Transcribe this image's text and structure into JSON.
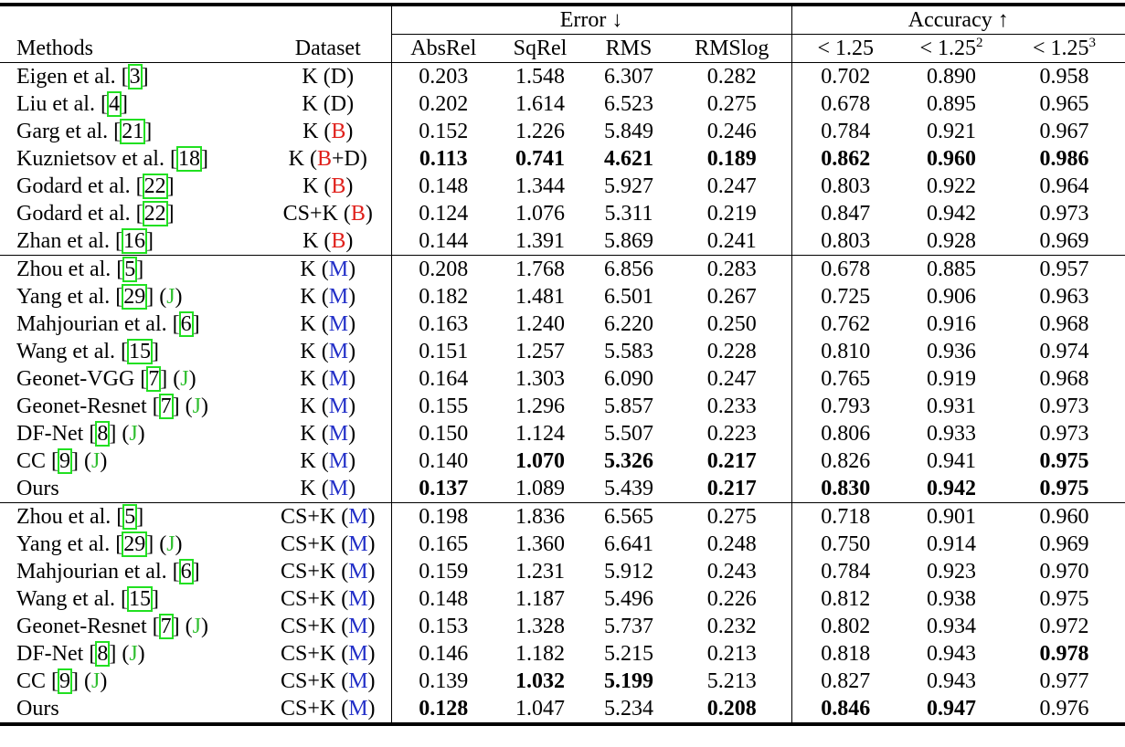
{
  "header": {
    "groups": [
      "Error ↓",
      "Accuracy ↑"
    ],
    "columns": [
      [
        "Methods"
      ],
      [
        "Dataset"
      ],
      [
        "AbsRel"
      ],
      [
        "SqRel"
      ],
      [
        "RMS"
      ],
      [
        "RMSlog"
      ],
      [
        "< 1.25"
      ],
      [
        "< 1.25",
        {
          "t": "2",
          "sup": true
        }
      ],
      [
        "< 1.25",
        {
          "t": "3",
          "sup": true
        }
      ]
    ]
  },
  "sections": [
    [
      {
        "method": [
          "Eigen et al. [",
          {
            "t": "3",
            "box": "#21e021"
          },
          "]"
        ],
        "dataset": [
          "K (D)"
        ],
        "values": [
          "0.203",
          "1.548",
          "6.307",
          "0.282",
          "0.702",
          "0.890",
          "0.958"
        ]
      },
      {
        "method": [
          "Liu et al. [",
          {
            "t": "4",
            "box": "#21e021"
          },
          "]"
        ],
        "dataset": [
          "K (D)"
        ],
        "values": [
          "0.202",
          "1.614",
          "6.523",
          "0.275",
          "0.678",
          "0.895",
          "0.965"
        ]
      },
      {
        "method": [
          "Garg et al. [",
          {
            "t": "21",
            "box": "#21e021"
          },
          "]"
        ],
        "dataset": [
          "K (",
          {
            "t": "B",
            "color": "#e0201b"
          },
          ")"
        ],
        "values": [
          "0.152",
          "1.226",
          "5.849",
          "0.246",
          "0.784",
          "0.921",
          "0.967"
        ]
      },
      {
        "method": [
          "Kuznietsov et al. [",
          {
            "t": "18",
            "box": "#21e021"
          },
          "]"
        ],
        "dataset": [
          "K (",
          {
            "t": "B",
            "color": "#e0201b"
          },
          "+D)"
        ],
        "values": [
          {
            "text": "0.113",
            "bold": true
          },
          {
            "text": "0.741",
            "bold": true
          },
          {
            "text": "4.621",
            "bold": true
          },
          {
            "text": "0.189",
            "bold": true
          },
          {
            "text": "0.862",
            "bold": true
          },
          {
            "text": "0.960",
            "bold": true
          },
          {
            "text": "0.986",
            "bold": true
          }
        ]
      },
      {
        "method": [
          "Godard et al. [",
          {
            "t": "22",
            "box": "#21e021"
          },
          "]"
        ],
        "dataset": [
          "K (",
          {
            "t": "B",
            "color": "#e0201b"
          },
          ")"
        ],
        "values": [
          "0.148",
          "1.344",
          "5.927",
          "0.247",
          "0.803",
          "0.922",
          "0.964"
        ]
      },
      {
        "method": [
          "Godard et al. [",
          {
            "t": "22",
            "box": "#21e021"
          },
          "]"
        ],
        "dataset": [
          "CS+K (",
          {
            "t": "B",
            "color": "#e0201b"
          },
          ")"
        ],
        "values": [
          "0.124",
          "1.076",
          "5.311",
          "0.219",
          "0.847",
          "0.942",
          "0.973"
        ]
      },
      {
        "method": [
          "Zhan et al. [",
          {
            "t": "16",
            "box": "#21e021"
          },
          "]"
        ],
        "dataset": [
          "K (",
          {
            "t": "B",
            "color": "#e0201b"
          },
          ")"
        ],
        "values": [
          "0.144",
          "1.391",
          "5.869",
          "0.241",
          "0.803",
          "0.928",
          "0.969"
        ]
      }
    ],
    [
      {
        "method": [
          "Zhou et al. [",
          {
            "t": "5",
            "box": "#21e021"
          },
          "]"
        ],
        "dataset": [
          "K (",
          {
            "t": "M",
            "color": "#2330c8"
          },
          ")"
        ],
        "values": [
          "0.208",
          "1.768",
          "6.856",
          "0.283",
          "0.678",
          "0.885",
          "0.957"
        ]
      },
      {
        "method": [
          "Yang et al. [",
          {
            "t": "29",
            "box": "#21e021"
          },
          "] (",
          {
            "t": "J",
            "color": "#2fbf2f"
          },
          ")"
        ],
        "dataset": [
          "K (",
          {
            "t": "M",
            "color": "#2330c8"
          },
          ")"
        ],
        "values": [
          "0.182",
          "1.481",
          "6.501",
          "0.267",
          "0.725",
          "0.906",
          "0.963"
        ]
      },
      {
        "method": [
          "Mahjourian et al. [",
          {
            "t": "6",
            "box": "#21e021"
          },
          "]"
        ],
        "dataset": [
          "K (",
          {
            "t": "M",
            "color": "#2330c8"
          },
          ")"
        ],
        "values": [
          "0.163",
          "1.240",
          "6.220",
          "0.250",
          "0.762",
          "0.916",
          "0.968"
        ]
      },
      {
        "method": [
          "Wang et al. [",
          {
            "t": "15",
            "box": "#21e021"
          },
          "]"
        ],
        "dataset": [
          "K (",
          {
            "t": "M",
            "color": "#2330c8"
          },
          ")"
        ],
        "values": [
          "0.151",
          "1.257",
          "5.583",
          "0.228",
          "0.810",
          "0.936",
          "0.974"
        ]
      },
      {
        "method": [
          "Geonet-VGG [",
          {
            "t": "7",
            "box": "#21e021"
          },
          "] (",
          {
            "t": "J",
            "color": "#2fbf2f"
          },
          ")"
        ],
        "dataset": [
          "K (",
          {
            "t": "M",
            "color": "#2330c8"
          },
          ")"
        ],
        "values": [
          "0.164",
          "1.303",
          "6.090",
          "0.247",
          "0.765",
          "0.919",
          "0.968"
        ]
      },
      {
        "method": [
          "Geonet-Resnet [",
          {
            "t": "7",
            "box": "#21e021"
          },
          "] (",
          {
            "t": "J",
            "color": "#2fbf2f"
          },
          ")"
        ],
        "dataset": [
          "K (",
          {
            "t": "M",
            "color": "#2330c8"
          },
          ")"
        ],
        "values": [
          "0.155",
          "1.296",
          "5.857",
          "0.233",
          "0.793",
          "0.931",
          "0.973"
        ]
      },
      {
        "method": [
          "DF-Net [",
          {
            "t": "8",
            "box": "#21e021"
          },
          "] (",
          {
            "t": "J",
            "color": "#2fbf2f"
          },
          ")"
        ],
        "dataset": [
          "K (",
          {
            "t": "M",
            "color": "#2330c8"
          },
          ")"
        ],
        "values": [
          "0.150",
          "1.124",
          "5.507",
          "0.223",
          "0.806",
          "0.933",
          "0.973"
        ]
      },
      {
        "method": [
          "CC [",
          {
            "t": "9",
            "box": "#21e021"
          },
          "] (",
          {
            "t": "J",
            "color": "#2fbf2f"
          },
          ")"
        ],
        "dataset": [
          "K (",
          {
            "t": "M",
            "color": "#2330c8"
          },
          ")"
        ],
        "values": [
          "0.140",
          {
            "text": "1.070",
            "bold": true
          },
          {
            "text": "5.326",
            "bold": true
          },
          {
            "text": "0.217",
            "bold": true
          },
          "0.826",
          "0.941",
          {
            "text": "0.975",
            "bold": true
          }
        ]
      },
      {
        "method": [
          "Ours"
        ],
        "dataset": [
          "K (",
          {
            "t": "M",
            "color": "#2330c8"
          },
          ")"
        ],
        "values": [
          {
            "text": "0.137",
            "bold": true
          },
          "1.089",
          "5.439",
          {
            "text": "0.217",
            "bold": true
          },
          {
            "text": "0.830",
            "bold": true
          },
          {
            "text": "0.942",
            "bold": true
          },
          {
            "text": "0.975",
            "bold": true
          }
        ]
      }
    ],
    [
      {
        "method": [
          "Zhou et al. [",
          {
            "t": "5",
            "box": "#21e021"
          },
          "]"
        ],
        "dataset": [
          "CS+K (",
          {
            "t": "M",
            "color": "#2330c8"
          },
          ")"
        ],
        "values": [
          "0.198",
          "1.836",
          "6.565",
          "0.275",
          "0.718",
          "0.901",
          "0.960"
        ]
      },
      {
        "method": [
          "Yang et al. [",
          {
            "t": "29",
            "box": "#21e021"
          },
          "] (",
          {
            "t": "J",
            "color": "#2fbf2f"
          },
          ")"
        ],
        "dataset": [
          "CS+K (",
          {
            "t": "M",
            "color": "#2330c8"
          },
          ")"
        ],
        "values": [
          "0.165",
          "1.360",
          "6.641",
          "0.248",
          "0.750",
          "0.914",
          "0.969"
        ]
      },
      {
        "method": [
          "Mahjourian et al. [",
          {
            "t": "6",
            "box": "#21e021"
          },
          "]"
        ],
        "dataset": [
          "CS+K (",
          {
            "t": "M",
            "color": "#2330c8"
          },
          ")"
        ],
        "values": [
          "0.159",
          "1.231",
          "5.912",
          "0.243",
          "0.784",
          "0.923",
          "0.970"
        ]
      },
      {
        "method": [
          "Wang et al. [",
          {
            "t": "15",
            "box": "#21e021"
          },
          "]"
        ],
        "dataset": [
          "CS+K (",
          {
            "t": "M",
            "color": "#2330c8"
          },
          ")"
        ],
        "values": [
          "0.148",
          "1.187",
          "5.496",
          "0.226",
          "0.812",
          "0.938",
          "0.975"
        ]
      },
      {
        "method": [
          "Geonet-Resnet [",
          {
            "t": "7",
            "box": "#21e021"
          },
          "] (",
          {
            "t": "J",
            "color": "#2fbf2f"
          },
          ")"
        ],
        "dataset": [
          "CS+K (",
          {
            "t": "M",
            "color": "#2330c8"
          },
          ")"
        ],
        "values": [
          "0.153",
          "1.328",
          "5.737",
          "0.232",
          "0.802",
          "0.934",
          "0.972"
        ]
      },
      {
        "method": [
          "DF-Net [",
          {
            "t": "8",
            "box": "#21e021"
          },
          "] (",
          {
            "t": "J",
            "color": "#2fbf2f"
          },
          ")"
        ],
        "dataset": [
          "CS+K (",
          {
            "t": "M",
            "color": "#2330c8"
          },
          ")"
        ],
        "values": [
          "0.146",
          "1.182",
          "5.215",
          "0.213",
          "0.818",
          "0.943",
          {
            "text": "0.978",
            "bold": true
          }
        ]
      },
      {
        "method": [
          "CC [",
          {
            "t": "9",
            "box": "#21e021"
          },
          "] (",
          {
            "t": "J",
            "color": "#2fbf2f"
          },
          ")"
        ],
        "dataset": [
          "CS+K (",
          {
            "t": "M",
            "color": "#2330c8"
          },
          ")"
        ],
        "values": [
          "0.139",
          {
            "text": "1.032",
            "bold": true
          },
          {
            "text": "5.199",
            "bold": true
          },
          "5.213",
          "0.827",
          "0.943",
          "0.977"
        ]
      },
      {
        "method": [
          "Ours"
        ],
        "dataset": [
          "CS+K (",
          {
            "t": "M",
            "color": "#2330c8"
          },
          ")"
        ],
        "values": [
          {
            "text": "0.128",
            "bold": true
          },
          "1.047",
          "5.234",
          {
            "text": "0.208",
            "bold": true
          },
          {
            "text": "0.846",
            "bold": true
          },
          {
            "text": "0.947",
            "bold": true
          },
          "0.976"
        ]
      }
    ]
  ]
}
